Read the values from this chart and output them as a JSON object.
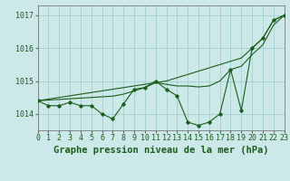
{
  "title": "Graphe pression niveau de la mer (hPa)",
  "background_color": "#cce8e8",
  "grid_color": "#99cccc",
  "line_color": "#1a5e1a",
  "hourly_values": [
    1014.4,
    1014.25,
    1014.25,
    1014.35,
    1014.25,
    1014.25,
    1014.0,
    1013.85,
    1014.3,
    1014.75,
    1014.8,
    1015.0,
    1014.75,
    1014.55,
    1013.75,
    1013.65,
    1013.75,
    1014.0,
    1015.35,
    1014.1,
    1016.0,
    1016.3,
    1016.85,
    1017.0
  ],
  "line1_values": [
    1014.4,
    1014.45,
    1014.5,
    1014.55,
    1014.6,
    1014.65,
    1014.7,
    1014.75,
    1014.8,
    1014.85,
    1014.9,
    1014.95,
    1015.0,
    1015.1,
    1015.2,
    1015.3,
    1015.4,
    1015.5,
    1015.6,
    1015.7,
    1016.0,
    1016.3,
    1016.85,
    1017.0
  ],
  "line2_values": [
    1014.4,
    1014.42,
    1014.44,
    1014.46,
    1014.48,
    1014.5,
    1014.52,
    1014.54,
    1014.6,
    1014.7,
    1014.8,
    1014.95,
    1014.9,
    1014.85,
    1014.85,
    1014.82,
    1014.85,
    1015.0,
    1015.35,
    1015.45,
    1015.8,
    1016.1,
    1016.7,
    1017.0
  ],
  "ylim": [
    1013.5,
    1017.3
  ],
  "yticks": [
    1014,
    1015,
    1016,
    1017
  ],
  "xlim": [
    0,
    23
  ],
  "x_labels": [
    "0",
    "1",
    "2",
    "3",
    "4",
    "5",
    "6",
    "7",
    "8",
    "9",
    "10",
    "11",
    "12",
    "13",
    "14",
    "15",
    "16",
    "17",
    "18",
    "19",
    "20",
    "21",
    "22",
    "23"
  ],
  "title_fontsize": 7.5,
  "tick_fontsize": 6.0
}
